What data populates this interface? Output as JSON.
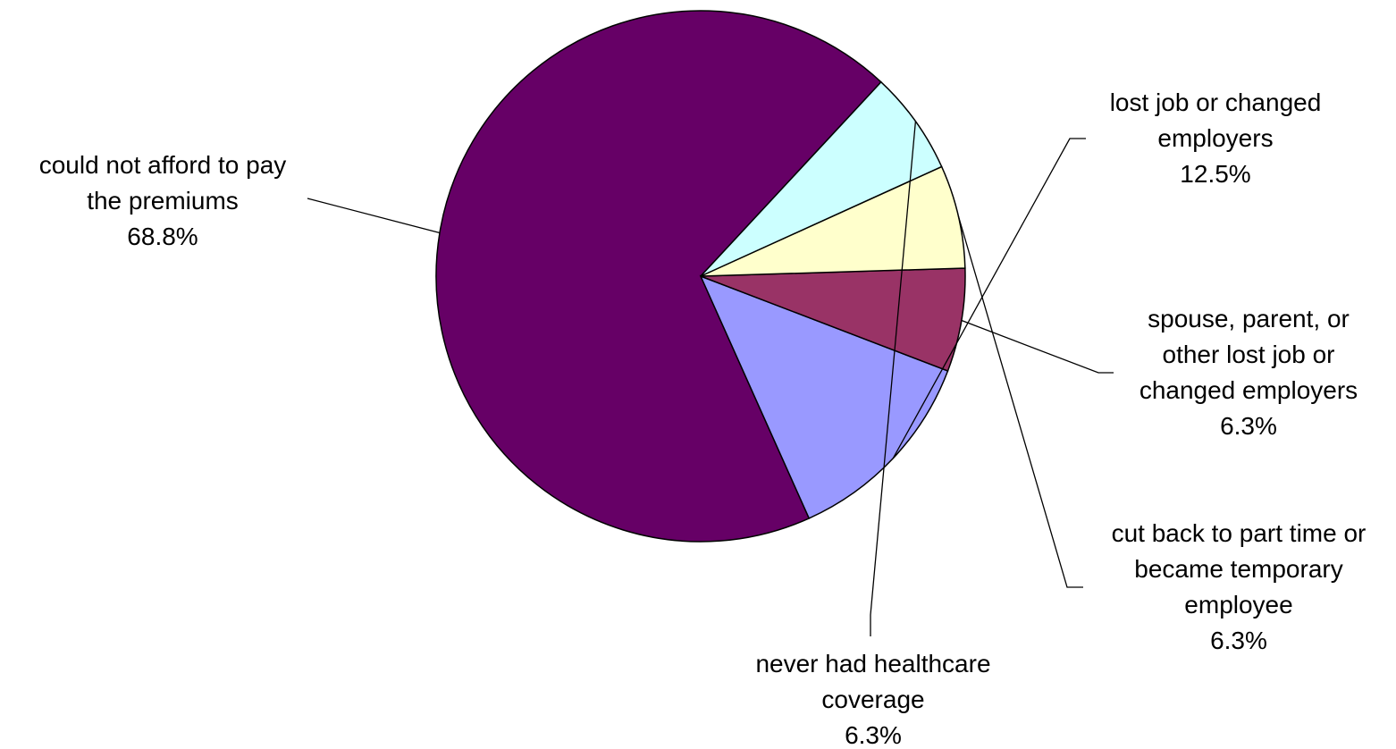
{
  "chart_data": {
    "type": "pie",
    "title": "",
    "slices": [
      {
        "label_lines": [
          "could not afford to pay",
          "the premiums"
        ],
        "value": 68.8,
        "value_label": "68.8%",
        "color": "#660066"
      },
      {
        "label_lines": [
          "lost job or changed",
          "employers"
        ],
        "value": 12.5,
        "value_label": "12.5%",
        "color": "#9999FF"
      },
      {
        "label_lines": [
          "spouse, parent, or",
          "other lost job or",
          "changed employers"
        ],
        "value": 6.3,
        "value_label": "6.3%",
        "color": "#993366"
      },
      {
        "label_lines": [
          "cut back to part time or",
          "became temporary",
          "employee"
        ],
        "value": 6.3,
        "value_label": "6.3%",
        "color": "#FFFFCC"
      },
      {
        "label_lines": [
          "never had healthcare",
          "coverage"
        ],
        "value": 6.3,
        "value_label": "6.3%",
        "color": "#CCFFFF"
      }
    ],
    "legend": "none",
    "data_labels": "outside with leader lines"
  }
}
